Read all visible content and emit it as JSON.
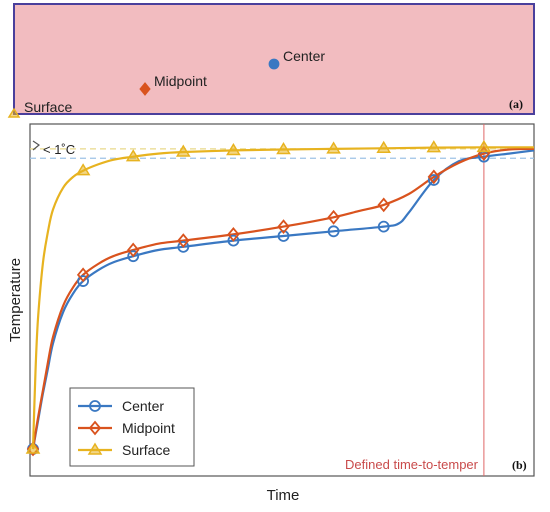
{
  "panel_a": {
    "tag": "(a)",
    "background": "#f2bcc0",
    "border": "#4a3f9c",
    "points": [
      {
        "key": "center",
        "label": "Center",
        "color": "#3a78c2",
        "marker": "circle"
      },
      {
        "key": "midpoint",
        "label": "Midpoint",
        "color": "#d9531e",
        "marker": "diamond"
      },
      {
        "key": "surface",
        "label": "Surface",
        "color": "#e7b320",
        "marker": "triangle"
      }
    ]
  },
  "chart_data": {
    "type": "line",
    "tag": "(b)",
    "title": "",
    "xlabel": "Time",
    "ylabel": "Temperature",
    "xlim": [
      0,
      100
    ],
    "ylim": [
      0,
      100
    ],
    "grid": false,
    "legend_position": "bottom-left",
    "annotation_threshold": "< 1˚C",
    "vline": {
      "x": 90,
      "label": "Defined time-to-temper",
      "color": "#e06666"
    },
    "hlines": [
      {
        "y": 96.5,
        "color": "#e8d88a"
      },
      {
        "y": 93.5,
        "color": "#9ec3e6"
      }
    ],
    "series": [
      {
        "name": "Center",
        "color": "#3a78c2",
        "marker": "circle",
        "x": [
          0,
          1,
          2,
          3,
          4,
          6,
          8,
          10,
          13,
          16,
          20,
          25,
          30,
          40,
          50,
          60,
          70,
          73,
          75,
          80,
          85,
          90,
          95,
          100
        ],
        "y": [
          0,
          9,
          18,
          26,
          34,
          44,
          50,
          54,
          57.5,
          60,
          62,
          64,
          65,
          67,
          68.5,
          70,
          71.5,
          72.5,
          76,
          86.5,
          92.5,
          94,
          95,
          96
        ],
        "marker_x": [
          0,
          10,
          20,
          30,
          40,
          50,
          60,
          70,
          80,
          90
        ]
      },
      {
        "name": "Midpoint",
        "color": "#d9531e",
        "marker": "diamond",
        "x": [
          0,
          1,
          2,
          3,
          4,
          6,
          8,
          10,
          13,
          16,
          20,
          25,
          30,
          40,
          50,
          60,
          65,
          70,
          75,
          80,
          85,
          90,
          95,
          100
        ],
        "y": [
          0,
          10,
          19,
          28,
          36,
          46,
          52,
          56,
          59.5,
          62,
          64,
          66,
          67,
          69,
          71.5,
          74.5,
          76.5,
          78.5,
          82,
          87.5,
          92,
          95,
          96.3,
          96.5
        ],
        "marker_x": [
          0,
          10,
          20,
          30,
          40,
          50,
          60,
          70,
          80,
          90
        ]
      },
      {
        "name": "Surface",
        "color": "#e7b320",
        "marker": "triangle",
        "x": [
          0,
          0.5,
          1,
          2,
          3,
          4,
          6,
          8,
          10,
          13,
          16,
          20,
          25,
          30,
          40,
          50,
          60,
          70,
          80,
          90,
          100
        ],
        "y": [
          0,
          25,
          42,
          60,
          70,
          77,
          84,
          87.5,
          89.5,
          91.5,
          93,
          94,
          95,
          95.5,
          96,
          96.3,
          96.5,
          96.7,
          96.9,
          97,
          97
        ],
        "marker_x": [
          0,
          10,
          20,
          30,
          40,
          50,
          60,
          70,
          80,
          90
        ]
      }
    ]
  }
}
